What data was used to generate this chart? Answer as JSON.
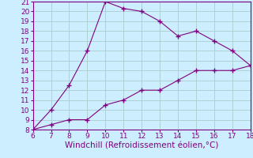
{
  "title": "",
  "xlabel": "Windchill (Refroidissement éolien,°C)",
  "line1_x": [
    6,
    7,
    8,
    9,
    10,
    11,
    12,
    13,
    14,
    15,
    16,
    17,
    18
  ],
  "line1_y": [
    8,
    10,
    12.5,
    16,
    21,
    20.3,
    20,
    19,
    17.5,
    18,
    17,
    16,
    14.5
  ],
  "line2_x": [
    6,
    7,
    8,
    9,
    10,
    11,
    12,
    13,
    14,
    15,
    16,
    17,
    18
  ],
  "line2_y": [
    8,
    8.5,
    9.0,
    9.0,
    10.5,
    11,
    12,
    12,
    13,
    14,
    14,
    14,
    14.5
  ],
  "line_color": "#800080",
  "marker": "+",
  "bg_color": "#cceeff",
  "grid_color": "#aacccc",
  "xlim": [
    6,
    18
  ],
  "ylim": [
    8,
    21
  ],
  "xticks": [
    6,
    7,
    8,
    9,
    10,
    11,
    12,
    13,
    14,
    15,
    16,
    17,
    18
  ],
  "yticks": [
    8,
    9,
    10,
    11,
    12,
    13,
    14,
    15,
    16,
    17,
    18,
    19,
    20,
    21
  ],
  "tick_label_color": "#800080",
  "tick_label_fontsize": 6.5,
  "xlabel_fontsize": 7.5,
  "xlabel_color": "#800080",
  "linewidth": 0.8,
  "markersize": 4,
  "markeredgewidth": 1.0
}
